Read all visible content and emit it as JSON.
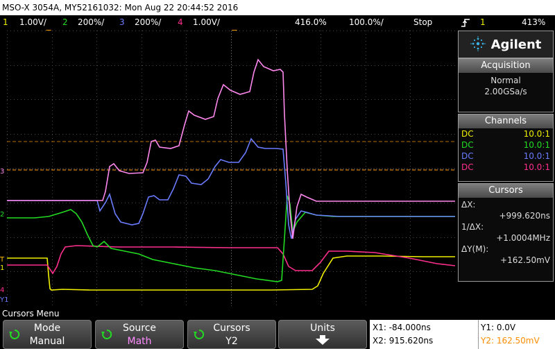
{
  "title": "MSO-X 3054A, MY52161032: Mon Aug 22 20:44:52 2016",
  "status_bar": {
    "ch1": {
      "num": "1",
      "scale": "1.00V/",
      "color": "#f0f000"
    },
    "ch2": {
      "num": "2",
      "scale": "200%/",
      "color": "#22dd22"
    },
    "ch3": {
      "num": "3",
      "scale": "200%/",
      "color": "#6a7cff"
    },
    "ch4": {
      "num": "4",
      "scale": "1.00V/",
      "color": "#ff2f8f"
    },
    "time_pos": "416.0%",
    "time_div": "100.0%/",
    "run_state": "Stop",
    "trigger_icon": "trigger-edge-icon",
    "trigger_source": "1",
    "trigger_level": "413%"
  },
  "left_markers": {
    "m1": "1",
    "m2": "2",
    "m3": "3",
    "m4": "4",
    "trigger_t": "T",
    "cursor_y1": "Y1"
  },
  "brand": "Agilent",
  "acquisition": {
    "header": "Acquisition",
    "mode": "Normal",
    "rate": "2.00GSa/s"
  },
  "channels": {
    "header": "Channels",
    "rows": [
      {
        "coupling": "DC",
        "probe": "10.0:1",
        "color": "#f0f000"
      },
      {
        "coupling": "DC",
        "probe": "10.0:1",
        "color": "#22dd22"
      },
      {
        "coupling": "DC",
        "probe": "10.0:1",
        "color": "#6a7cff"
      },
      {
        "coupling": "DC",
        "probe": "10.0:1",
        "color": "#ff2f8f"
      }
    ]
  },
  "cursors": {
    "header": "Cursors",
    "dx_label": "ΔX:",
    "dx_value": "+999.620ns",
    "inv_dx_label": "1/ΔX:",
    "inv_dx_value": "+1.0004MHz",
    "dy_label": "ΔY(M):",
    "dy_value": "+162.50mV"
  },
  "menu": {
    "title": "Cursors Menu",
    "softkeys": [
      {
        "label": "Mode",
        "value": "Manual",
        "value_color": "#ffffff",
        "icon": "rotate-knob-icon"
      },
      {
        "label": "Source",
        "value": "Math",
        "value_color": "#ff8cff",
        "icon": "rotate-knob-icon"
      },
      {
        "label": "Cursors",
        "value": "Y2",
        "value_color": "#ffffff",
        "icon": "rotate-knob-icon"
      },
      {
        "label": "Units",
        "value": "",
        "value_color": "#ffffff",
        "icon": "down-arrow-icon"
      }
    ]
  },
  "cursor_readout": {
    "x1": "X1: -84.000ns",
    "x2": "X2: 915.620ns",
    "y1": "Y1: 0.0V",
    "y2": "Y2: 162.50mV",
    "y2_color": "#ff8c00"
  },
  "colors": {
    "graticule": "#4a4a4a",
    "cursor_line": "#ff9900",
    "math_trace": "#ff88ee"
  }
}
